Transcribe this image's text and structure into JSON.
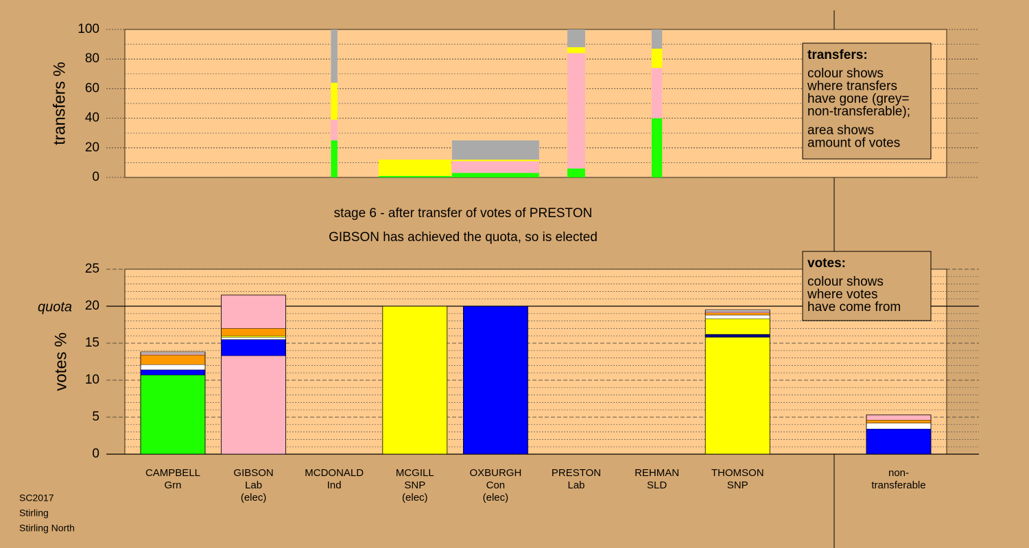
{
  "chart_data": [
    {
      "type": "transfer-bar",
      "ylabel": "transfers %",
      "ylim": [
        0,
        100
      ],
      "yticks": [
        0,
        20,
        40,
        60,
        80,
        100
      ],
      "minor_yticks": [
        10,
        30,
        50,
        70,
        90
      ],
      "columns": [
        {
          "category": 2,
          "width": 0.08,
          "segments": [
            {
              "color": "#1eff00",
              "value": 25
            },
            {
              "color": "#ffb3c1",
              "value": 14
            },
            {
              "color": "#ffff00",
              "value": 25
            },
            {
              "color": "#aaaaaa",
              "value": 36
            }
          ]
        },
        {
          "category": 3,
          "width": 0.9,
          "segments": [
            {
              "color": "#1eff00",
              "value": 1
            },
            {
              "color": "#ffff00",
              "value": 11
            }
          ]
        },
        {
          "category": 4,
          "width": 1.08,
          "segments": [
            {
              "color": "#1eff00",
              "value": 3
            },
            {
              "color": "#ffb3c1",
              "value": 8
            },
            {
              "color": "#ffff00",
              "value": 1
            },
            {
              "color": "#aaaaaa",
              "value": 13
            }
          ]
        },
        {
          "category": 5,
          "width": 0.22,
          "segments": [
            {
              "color": "#1eff00",
              "value": 6
            },
            {
              "color": "#ffb3c1",
              "value": 78
            },
            {
              "color": "#ffff00",
              "value": 4
            },
            {
              "color": "#aaaaaa",
              "value": 12
            }
          ]
        },
        {
          "category": 6,
          "width": 0.13,
          "segments": [
            {
              "color": "#1eff00",
              "value": 40
            },
            {
              "color": "#ffb3c1",
              "value": 34
            },
            {
              "color": "#ffff00",
              "value": 13
            },
            {
              "color": "#aaaaaa",
              "value": 13
            }
          ]
        }
      ],
      "legend": {
        "title": "transfers:",
        "paragraphs": [
          [
            "colour shows",
            "where transfers",
            "have gone (grey=",
            "non-transferable);"
          ],
          [
            "area shows",
            "amount of votes"
          ]
        ]
      }
    },
    {
      "type": "stacked-bar",
      "ylabel": "votes %",
      "ylim": [
        0,
        25
      ],
      "yticks": [
        0,
        5,
        10,
        15,
        20,
        25
      ],
      "minor_yticks": [
        1,
        2,
        3,
        4,
        6,
        7,
        8,
        9,
        11,
        12,
        13,
        14,
        16,
        17,
        18,
        19,
        21,
        22,
        23,
        24
      ],
      "quota": {
        "value": 20,
        "label": "quota"
      },
      "categories": [
        [
          "CAMPBELL",
          "Grn"
        ],
        [
          "GIBSON",
          "Lab",
          "(elec)"
        ],
        [
          "MCDONALD",
          "Ind"
        ],
        [
          "MCGILL",
          "SNP",
          "(elec)"
        ],
        [
          "OXBURGH",
          "Con",
          "(elec)"
        ],
        [
          "PRESTON",
          "Lab"
        ],
        [
          "REHMAN",
          "SLD"
        ],
        [
          "THOMSON",
          "SNP"
        ],
        [
          "non-",
          "transferable"
        ]
      ],
      "bars": [
        {
          "segments": [
            {
              "color": "#1eff00",
              "value": 10.7
            },
            {
              "color": "#0000ff",
              "value": 0.7
            },
            {
              "color": "#ffffff",
              "value": 0.7
            },
            {
              "color": "#ff9900",
              "value": 1.3
            },
            {
              "color": "#ffb3c1",
              "value": 0.2
            },
            {
              "color": "#ffffff",
              "value": 0.2
            }
          ]
        },
        {
          "segments": [
            {
              "color": "#ffb3c1",
              "value": 13.3
            },
            {
              "color": "#0000ff",
              "value": 2.2
            },
            {
              "color": "#ffffff",
              "value": 0.3
            },
            {
              "color": "#ffff00",
              "value": 0.2
            },
            {
              "color": "#ff9900",
              "value": 1.0
            },
            {
              "color": "#ffb3c1",
              "value": 4.5
            }
          ]
        },
        {
          "segments": []
        },
        {
          "segments": [
            {
              "color": "#ffff00",
              "value": 20
            }
          ]
        },
        {
          "segments": [
            {
              "color": "#0000ff",
              "value": 20
            }
          ]
        },
        {
          "segments": []
        },
        {
          "segments": []
        },
        {
          "segments": [
            {
              "color": "#ffff00",
              "value": 15.8
            },
            {
              "color": "#000080",
              "value": 0.4
            },
            {
              "color": "#ffff00",
              "value": 2.1
            },
            {
              "color": "#ffffff",
              "value": 0.5
            },
            {
              "color": "#ff9900",
              "value": 0.3
            },
            {
              "color": "#ffb3c1",
              "value": 0.2
            },
            {
              "color": "#ffffff",
              "value": 0.2
            }
          ]
        },
        {
          "segments": [
            {
              "color": "#0000ff",
              "value": 3.4
            },
            {
              "color": "#ffffff",
              "value": 0.8
            },
            {
              "color": "#ff9900",
              "value": 0.4
            },
            {
              "color": "#ffb3c1",
              "value": 0.7
            }
          ]
        }
      ],
      "legend": {
        "title": "votes:",
        "paragraphs": [
          [
            "colour shows",
            "where votes",
            "have come from"
          ]
        ]
      }
    }
  ],
  "stage": [
    "stage 6 - after transfer of votes of PRESTON",
    "GIBSON has achieved the quota, so is elected"
  ],
  "footer": [
    "SC2017",
    "Stirling",
    "Stirling North"
  ]
}
